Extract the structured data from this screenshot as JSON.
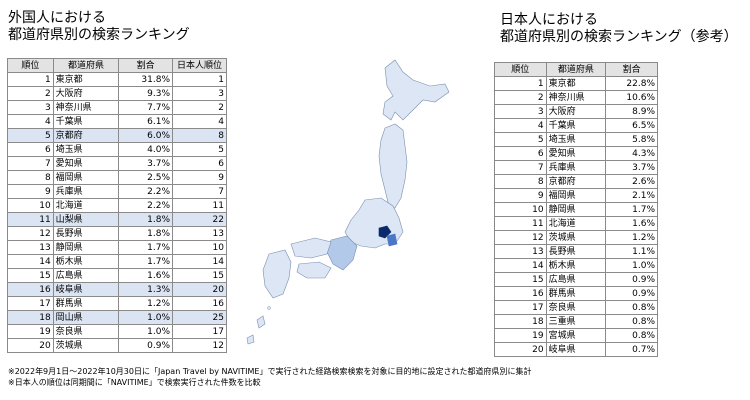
{
  "left": {
    "heading": "外国人における\n都道府県別の検索ランキング",
    "headers": [
      "順位",
      "都道府県",
      "割合",
      "日本人順位"
    ],
    "rows": [
      {
        "rank": "1",
        "pref": "東京都",
        "share": "31.8%",
        "jp_rank": "1",
        "highlight": false
      },
      {
        "rank": "2",
        "pref": "大阪府",
        "share": "9.3%",
        "jp_rank": "3",
        "highlight": false
      },
      {
        "rank": "3",
        "pref": "神奈川県",
        "share": "7.7%",
        "jp_rank": "2",
        "highlight": false
      },
      {
        "rank": "4",
        "pref": "千葉県",
        "share": "6.1%",
        "jp_rank": "4",
        "highlight": false
      },
      {
        "rank": "5",
        "pref": "京都府",
        "share": "6.0%",
        "jp_rank": "8",
        "highlight": true
      },
      {
        "rank": "6",
        "pref": "埼玉県",
        "share": "4.0%",
        "jp_rank": "5",
        "highlight": false
      },
      {
        "rank": "7",
        "pref": "愛知県",
        "share": "3.7%",
        "jp_rank": "6",
        "highlight": false
      },
      {
        "rank": "8",
        "pref": "福岡県",
        "share": "2.5%",
        "jp_rank": "9",
        "highlight": false
      },
      {
        "rank": "9",
        "pref": "兵庫県",
        "share": "2.2%",
        "jp_rank": "7",
        "highlight": false
      },
      {
        "rank": "10",
        "pref": "北海道",
        "share": "2.2%",
        "jp_rank": "11",
        "highlight": false
      },
      {
        "rank": "11",
        "pref": "山梨県",
        "share": "1.8%",
        "jp_rank": "22",
        "highlight": true
      },
      {
        "rank": "12",
        "pref": "長野県",
        "share": "1.8%",
        "jp_rank": "13",
        "highlight": false
      },
      {
        "rank": "13",
        "pref": "静岡県",
        "share": "1.7%",
        "jp_rank": "10",
        "highlight": false
      },
      {
        "rank": "14",
        "pref": "栃木県",
        "share": "1.7%",
        "jp_rank": "14",
        "highlight": false
      },
      {
        "rank": "15",
        "pref": "広島県",
        "share": "1.6%",
        "jp_rank": "15",
        "highlight": false
      },
      {
        "rank": "16",
        "pref": "岐阜県",
        "share": "1.3%",
        "jp_rank": "20",
        "highlight": true
      },
      {
        "rank": "17",
        "pref": "群馬県",
        "share": "1.2%",
        "jp_rank": "16",
        "highlight": false
      },
      {
        "rank": "18",
        "pref": "岡山県",
        "share": "1.0%",
        "jp_rank": "25",
        "highlight": true
      },
      {
        "rank": "19",
        "pref": "奈良県",
        "share": "1.0%",
        "jp_rank": "17",
        "highlight": false
      },
      {
        "rank": "20",
        "pref": "茨城県",
        "share": "0.9%",
        "jp_rank": "12",
        "highlight": false
      }
    ]
  },
  "right": {
    "heading": "日本人における\n都道府県別の検索ランキング（参考）",
    "headers": [
      "順位",
      "都道府県",
      "割合"
    ],
    "rows": [
      {
        "rank": "1",
        "pref": "東京都",
        "share": "22.8%"
      },
      {
        "rank": "2",
        "pref": "神奈川県",
        "share": "10.6%"
      },
      {
        "rank": "3",
        "pref": "大阪府",
        "share": "8.9%"
      },
      {
        "rank": "4",
        "pref": "千葉県",
        "share": "6.5%"
      },
      {
        "rank": "5",
        "pref": "埼玉県",
        "share": "5.8%"
      },
      {
        "rank": "6",
        "pref": "愛知県",
        "share": "4.3%"
      },
      {
        "rank": "7",
        "pref": "兵庫県",
        "share": "3.7%"
      },
      {
        "rank": "8",
        "pref": "京都府",
        "share": "2.6%"
      },
      {
        "rank": "9",
        "pref": "福岡県",
        "share": "2.1%"
      },
      {
        "rank": "10",
        "pref": "静岡県",
        "share": "1.7%"
      },
      {
        "rank": "11",
        "pref": "北海道",
        "share": "1.6%"
      },
      {
        "rank": "12",
        "pref": "茨城県",
        "share": "1.2%"
      },
      {
        "rank": "13",
        "pref": "長野県",
        "share": "1.1%"
      },
      {
        "rank": "14",
        "pref": "栃木県",
        "share": "1.0%"
      },
      {
        "rank": "15",
        "pref": "広島県",
        "share": "0.9%"
      },
      {
        "rank": "16",
        "pref": "群馬県",
        "share": "0.9%"
      },
      {
        "rank": "17",
        "pref": "奈良県",
        "share": "0.8%"
      },
      {
        "rank": "18",
        "pref": "三重県",
        "share": "0.8%"
      },
      {
        "rank": "19",
        "pref": "宮城県",
        "share": "0.8%"
      },
      {
        "rank": "20",
        "pref": "岐阜県",
        "share": "0.7%"
      }
    ]
  },
  "footnotes": [
    "※2022年9月1日～2022年10月30日に「Japan Travel by NAVITIME」で実行された経路検索検索を対象に目的地に設定された都道府県別に集計",
    "※日本人の順位は同期間に「NAVITIME」で検索実行された件数を比較"
  ],
  "colors": {
    "header_bg": "#e3e3e3",
    "highlight_row": "#dbe4f3",
    "map_light": "#dce6f5",
    "map_mid": "#b3c9ea",
    "map_dark": "#0b2a6b",
    "map_border": "#7a8fb0"
  },
  "chart_data": [
    {
      "type": "table",
      "title": "外国人における都道府県別の検索ランキング",
      "columns": [
        "順位",
        "都道府県",
        "割合",
        "日本人順位"
      ],
      "rows": [
        [
          1,
          "東京都",
          31.8,
          1
        ],
        [
          2,
          "大阪府",
          9.3,
          3
        ],
        [
          3,
          "神奈川県",
          7.7,
          2
        ],
        [
          4,
          "千葉県",
          6.1,
          4
        ],
        [
          5,
          "京都府",
          6.0,
          8
        ],
        [
          6,
          "埼玉県",
          4.0,
          5
        ],
        [
          7,
          "愛知県",
          3.7,
          6
        ],
        [
          8,
          "福岡県",
          2.5,
          9
        ],
        [
          9,
          "兵庫県",
          2.2,
          7
        ],
        [
          10,
          "北海道",
          2.2,
          11
        ],
        [
          11,
          "山梨県",
          1.8,
          22
        ],
        [
          12,
          "長野県",
          1.8,
          13
        ],
        [
          13,
          "静岡県",
          1.7,
          10
        ],
        [
          14,
          "栃木県",
          1.7,
          14
        ],
        [
          15,
          "広島県",
          1.6,
          15
        ],
        [
          16,
          "岐阜県",
          1.3,
          20
        ],
        [
          17,
          "群馬県",
          1.2,
          16
        ],
        [
          18,
          "岡山県",
          1.0,
          25
        ],
        [
          19,
          "奈良県",
          1.0,
          17
        ],
        [
          20,
          "茨城県",
          0.9,
          12
        ]
      ]
    },
    {
      "type": "table",
      "title": "日本人における都道府県別の検索ランキング（参考）",
      "columns": [
        "順位",
        "都道府県",
        "割合"
      ],
      "rows": [
        [
          1,
          "東京都",
          22.8
        ],
        [
          2,
          "神奈川県",
          10.6
        ],
        [
          3,
          "大阪府",
          8.9
        ],
        [
          4,
          "千葉県",
          6.5
        ],
        [
          5,
          "埼玉県",
          5.8
        ],
        [
          6,
          "愛知県",
          4.3
        ],
        [
          7,
          "兵庫県",
          3.7
        ],
        [
          8,
          "京都府",
          2.6
        ],
        [
          9,
          "福岡県",
          2.1
        ],
        [
          10,
          "静岡県",
          1.7
        ],
        [
          11,
          "北海道",
          1.6
        ],
        [
          12,
          "茨城県",
          1.2
        ],
        [
          13,
          "長野県",
          1.1
        ],
        [
          14,
          "栃木県",
          1.0
        ],
        [
          15,
          "広島県",
          0.9
        ],
        [
          16,
          "群馬県",
          0.9
        ],
        [
          17,
          "奈良県",
          0.8
        ],
        [
          18,
          "三重県",
          0.8
        ],
        [
          19,
          "宮城県",
          0.8
        ],
        [
          20,
          "岐阜県",
          0.7
        ]
      ]
    }
  ]
}
